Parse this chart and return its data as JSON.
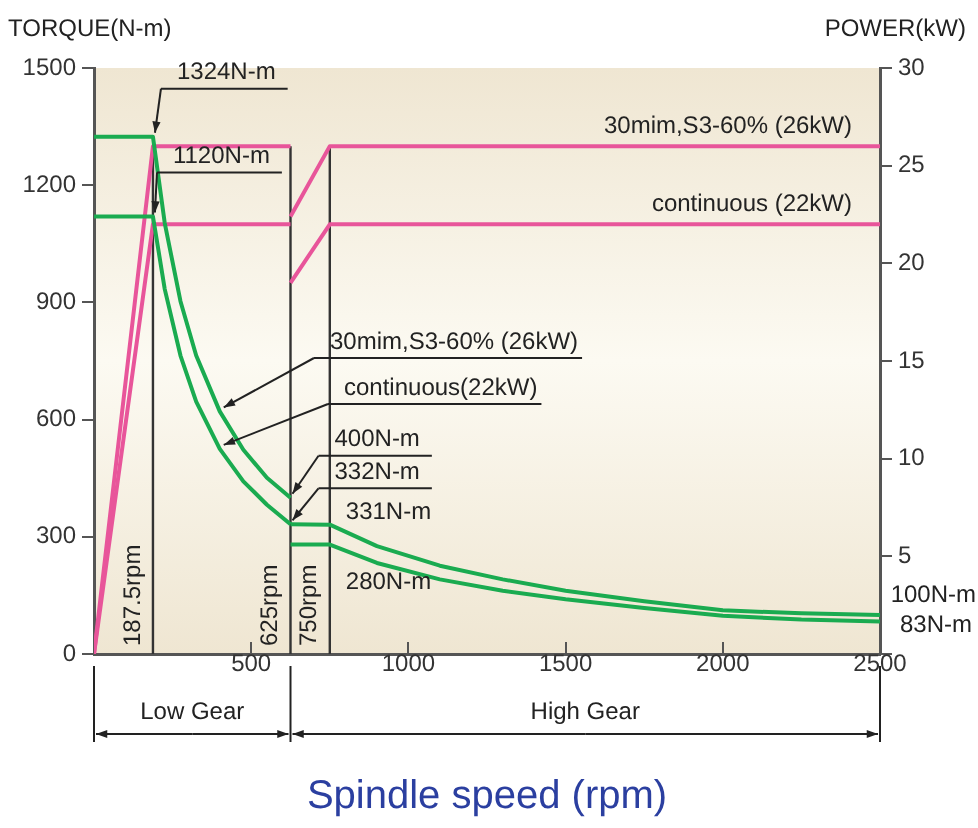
{
  "chart_data": {
    "type": "line",
    "xlabel": "Spindle speed (rpm)",
    "ylabel": "TORQUE(N-m)",
    "y2label": "POWER(kW)",
    "xlim": [
      0,
      2500
    ],
    "xticks": [
      {
        "value": 0,
        "label": null
      },
      500,
      1000,
      1500,
      2000,
      2500
    ],
    "ylim": [
      0,
      1500
    ],
    "yticks": [
      0,
      300,
      600,
      900,
      1200,
      1500
    ],
    "y2lim": [
      0,
      30
    ],
    "y2ticks": [
      {
        "value": 0,
        "label": null
      },
      5,
      10,
      15,
      20,
      25,
      30
    ],
    "grid": false,
    "legend": false,
    "marker": "none",
    "line_style": "solid",
    "series": [
      {
        "name": "30mim,S3-60% (26kW)",
        "color": "#1aab50",
        "x": [
          0,
          187.5,
          225,
          275,
          325,
          400,
          475,
          550,
          625
        ],
        "values": [
          1324,
          1324,
          1103,
          903,
          764,
          621,
          523,
          451,
          400
        ]
      },
      {
        "color": "#1aab50",
        "x": [
          625,
          750,
          900,
          1100,
          1300,
          1500,
          1750,
          2000,
          2250,
          2500
        ],
        "values": [
          332,
          331,
          276,
          226,
          191,
          162,
          135,
          112,
          104,
          100
        ]
      },
      {
        "name": "continuous(22kW)",
        "color": "#1aab50",
        "x": [
          0,
          187.5,
          225,
          275,
          325,
          400,
          475,
          550,
          625
        ],
        "values": [
          1120,
          1120,
          934,
          764,
          646,
          525,
          442,
          382,
          332
        ]
      },
      {
        "color": "#1aab50",
        "x": [
          625,
          750,
          900,
          1100,
          1300,
          1500,
          1750,
          2000,
          2250,
          2500
        ],
        "values": [
          280,
          280,
          233,
          191,
          162,
          140,
          118,
          98,
          88,
          83
        ]
      },
      {
        "color": "#e8559a",
        "axis": "y2",
        "x": [
          0,
          187.5,
          625
        ],
        "values": [
          0,
          26,
          26
        ]
      },
      {
        "name": "30mim,S3-60% (26kW)",
        "color": "#e8559a",
        "axis": "y2",
        "x": [
          625,
          750,
          2500
        ],
        "values": [
          22.4,
          26,
          26
        ]
      },
      {
        "color": "#e8559a",
        "axis": "y2",
        "x": [
          0,
          187.5,
          625
        ],
        "values": [
          0,
          22,
          22
        ]
      },
      {
        "name": "continuous (22kW)",
        "color": "#e8559a",
        "axis": "y2",
        "x": [
          625,
          750,
          2500
        ],
        "values": [
          19,
          22,
          22
        ]
      }
    ],
    "ref_lines": [
      {
        "axis": "x",
        "value": 187.5,
        "label": "187.5rpm",
        "color": "#333333"
      },
      {
        "axis": "x",
        "value": 625,
        "label": "625rpm",
        "color": "#333333"
      },
      {
        "axis": "x",
        "value": 750,
        "label": "750rpm",
        "color": "#333333"
      }
    ],
    "annotations": [
      {
        "text": "1324N-m",
        "x": 187.5,
        "y": 1324
      },
      {
        "text": "1120N-m",
        "x": 187.5,
        "y": 1120
      },
      {
        "text": "400N-m",
        "x": 625,
        "y": 400
      },
      {
        "text": "332N-m",
        "x": 625,
        "y": 332
      },
      {
        "text": "331N-m",
        "x": 750,
        "y": 331
      },
      {
        "text": "280N-m",
        "x": 750,
        "y": 280
      },
      {
        "text": "100N-m",
        "x": 2500,
        "y": 100
      },
      {
        "text": "83N-m",
        "x": 2500,
        "y": 83
      },
      "Low Gear",
      "High Gear"
    ]
  }
}
